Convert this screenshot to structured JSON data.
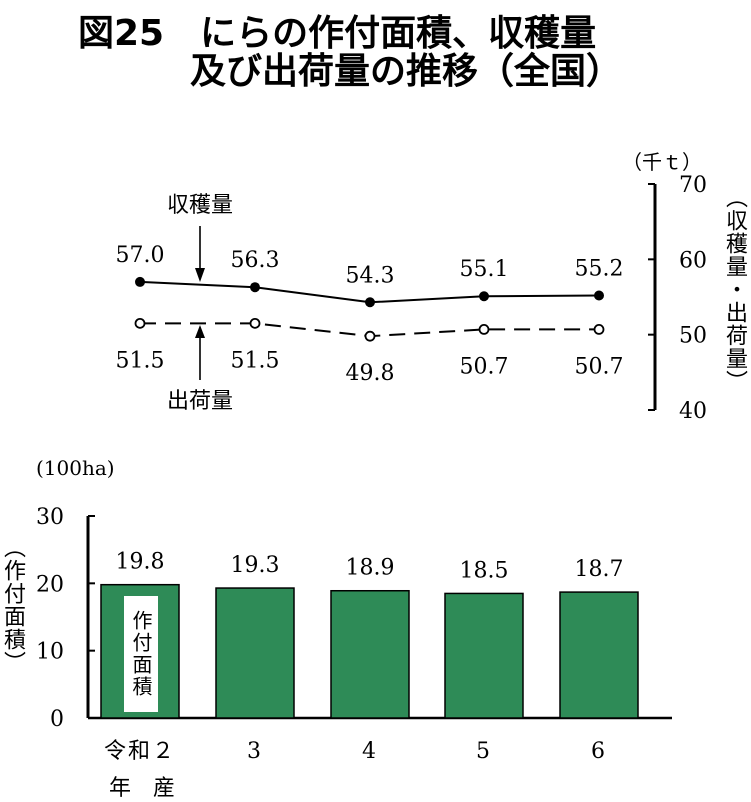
{
  "title": {
    "line1": "図25　にらの作付面積、収穫量",
    "line2": "及び出荷量の推移（全国）"
  },
  "chart_data": [
    {
      "type": "line",
      "categories": [
        "令和２",
        "3",
        "4",
        "5",
        "6"
      ],
      "series": [
        {
          "name": "収穫量",
          "values": [
            57.0,
            56.3,
            54.3,
            55.1,
            55.2
          ],
          "labels": [
            "57.0",
            "56.3",
            "54.3",
            "55.1",
            "55.2"
          ],
          "marker": "filled",
          "line": "solid"
        },
        {
          "name": "出荷量",
          "values": [
            51.5,
            51.5,
            49.8,
            50.7,
            50.7
          ],
          "labels": [
            "51.5",
            "51.5",
            "49.8",
            "50.7",
            "50.7"
          ],
          "marker": "open",
          "line": "dashed"
        }
      ],
      "unit": "（千ｔ）",
      "ylabel": "（収穫量・出荷量）",
      "ylim": [
        40,
        70
      ],
      "yticks": [
        "40",
        "50",
        "60",
        "70"
      ],
      "axis_side": "right"
    },
    {
      "type": "bar",
      "categories": [
        "令和２",
        "3",
        "4",
        "5",
        "6"
      ],
      "values": [
        19.8,
        19.3,
        18.9,
        18.5,
        18.7
      ],
      "labels": [
        "19.8",
        "19.3",
        "18.9",
        "18.5",
        "18.7"
      ],
      "unit": "(100ha)",
      "ylabel": "（作付面積）",
      "ylim": [
        0,
        30
      ],
      "yticks": [
        "0",
        "10",
        "20",
        "30"
      ],
      "bar_label": "作付面積",
      "xlabel_suffix": "年　産",
      "bar_color": "#2e8b57"
    }
  ]
}
